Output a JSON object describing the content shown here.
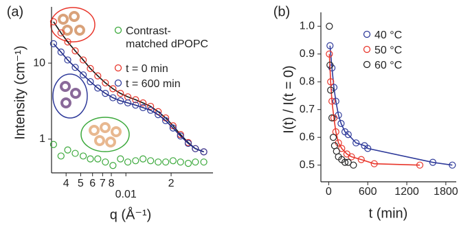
{
  "chart_data": [
    {
      "type": "scatter",
      "panel": "(a)",
      "xlabel": "q (Å⁻¹)",
      "ylabel": "Intensity (cm⁻¹)",
      "xlog": true,
      "ylog": true,
      "xlim": [
        0.0032,
        0.038
      ],
      "ylim": [
        0.36,
        55
      ],
      "xticks": [
        {
          "value": 0.004,
          "label": "4"
        },
        {
          "value": 0.005,
          "label": "5"
        },
        {
          "value": 0.006,
          "label": "6"
        },
        {
          "value": 0.007,
          "label": "7"
        },
        {
          "value": 0.008,
          "label": "8"
        },
        0.01,
        {
          "value": 0.02,
          "label": "2"
        }
      ],
      "yticks": [
        1,
        10
      ],
      "x": [
        0.0033,
        0.0037,
        0.0041,
        0.0046,
        0.0052,
        0.0058,
        0.0065,
        0.0073,
        0.0082,
        0.0092,
        0.0103,
        0.0116,
        0.013,
        0.0146,
        0.0164,
        0.0184,
        0.0206,
        0.0231,
        0.026,
        0.029,
        0.033
      ],
      "series": [
        {
          "name": "Contrast-matched dPOPC",
          "color": "#3aa83a",
          "values": [
            0.85,
            0.6,
            0.72,
            0.65,
            0.6,
            0.55,
            0.55,
            0.5,
            0.45,
            0.55,
            0.5,
            0.52,
            0.55,
            0.52,
            0.5,
            0.5,
            0.52,
            0.5,
            0.48,
            0.5,
            0.5
          ]
        },
        {
          "name": "t = 0 min",
          "color": "#e8352a",
          "line_color": "#111111",
          "values": [
            35,
            25,
            19,
            14.5,
            11,
            8.5,
            6.8,
            5.5,
            4.6,
            4.0,
            3.6,
            3.3,
            3.0,
            2.7,
            2.3,
            1.9,
            1.5,
            1.15,
            0.9,
            0.75,
            0.68
          ]
        },
        {
          "name": "t = 600 min",
          "color": "#2e3a9a",
          "line_color": "#1a2480",
          "values": [
            18,
            14,
            11,
            8.8,
            7,
            5.7,
            4.7,
            4.0,
            3.5,
            3.2,
            3.0,
            2.8,
            2.6,
            2.4,
            2.1,
            1.75,
            1.4,
            1.1,
            0.88,
            0.75,
            0.68
          ]
        }
      ]
    },
    {
      "type": "scatter",
      "panel": "(b)",
      "xlabel": "t (min)",
      "ylabel": "I(t) / I(t = 0)",
      "xlim": [
        -120,
        1960
      ],
      "ylim": [
        0.44,
        1.05
      ],
      "xticks": [
        0,
        600,
        1200,
        1800
      ],
      "yticks": [
        0.5,
        0.6,
        0.7,
        0.8,
        0.9,
        {
          "value": 1,
          "label": "1.0"
        }
      ],
      "series": [
        {
          "name": "40 °C",
          "color": "#2e3a9a",
          "line_color": "#2e3a9a",
          "x": [
            20,
            50,
            80,
            110,
            150,
            190,
            250,
            300,
            420,
            550,
            600,
            1600,
            1900
          ],
          "values": [
            0.93,
            0.85,
            0.78,
            0.73,
            0.68,
            0.65,
            0.62,
            0.61,
            0.58,
            0.57,
            0.56,
            0.51,
            0.5
          ]
        },
        {
          "name": "50 °C",
          "color": "#e8352a",
          "line_color": "#e8352a",
          "x": [
            10,
            30,
            50,
            80,
            110,
            150,
            200,
            280,
            350,
            500,
            700,
            1400
          ],
          "values": [
            0.9,
            0.8,
            0.73,
            0.67,
            0.62,
            0.58,
            0.56,
            0.54,
            0.53,
            0.52,
            0.505,
            0.5
          ]
        },
        {
          "name": "60 °C",
          "color": "#222222",
          "x": [
            10,
            20,
            30,
            50,
            70,
            90,
            120,
            150,
            200,
            250,
            300,
            380
          ],
          "values": [
            1.0,
            0.86,
            0.77,
            0.67,
            0.6,
            0.57,
            0.55,
            0.53,
            0.52,
            0.51,
            0.51,
            0.5
          ]
        }
      ]
    }
  ]
}
